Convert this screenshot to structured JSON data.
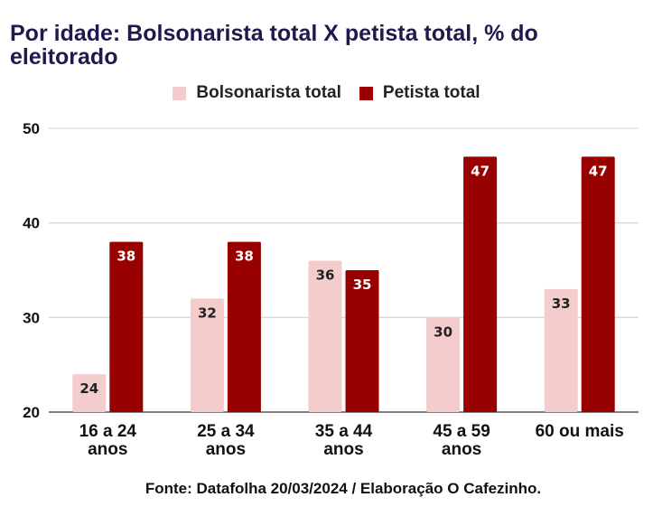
{
  "chart_data": {
    "type": "bar",
    "title": "Por idade: Bolsonarista total X petista total, % do eleitorado",
    "categories": [
      [
        "16 a 24",
        "anos"
      ],
      [
        "25 a 34",
        "anos"
      ],
      [
        "35 a 44",
        "anos"
      ],
      [
        "45 a 59",
        "anos"
      ],
      [
        "60 ou mais"
      ]
    ],
    "series": [
      {
        "name": "Bolsonarista total",
        "color": "#f4cccc",
        "values": [
          24,
          32,
          36,
          30,
          33
        ]
      },
      {
        "name": "Petista total",
        "color": "#990000",
        "values": [
          38,
          38,
          35,
          47,
          47
        ]
      }
    ],
    "ylim": [
      20,
      50
    ],
    "yticks": [
      20,
      30,
      40,
      50
    ],
    "grid": true,
    "legend_position": "top-center",
    "data_labels": true
  },
  "source": "Fonte: Datafolha 20/03/2024 / Elaboração O Cafezinho."
}
